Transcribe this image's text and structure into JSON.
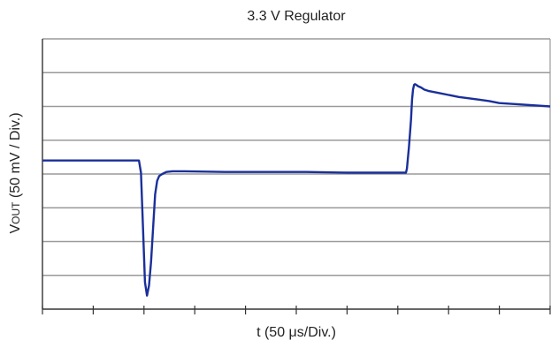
{
  "chart_data": {
    "type": "line",
    "title": "3.3 V Regulator",
    "xlabel": "t (50 μs/Div.)",
    "ylabel": {
      "prefix": "V",
      "subscript": "OUT",
      "suffix": " (50 mV / Div.)"
    },
    "xlim": [
      0,
      500
    ],
    "ylim": [
      -200,
      200
    ],
    "x_divisions": 10,
    "y_divisions": 8,
    "grid": "horizontal",
    "series": [
      {
        "x": [
          0,
          30,
          60,
          95,
          97,
          99,
          101,
          103,
          105,
          107,
          109,
          111,
          113,
          115,
          118,
          122,
          128,
          140,
          180,
          220,
          260,
          300,
          340,
          358,
          359,
          361,
          363,
          364,
          365,
          366,
          367,
          368,
          370,
          373,
          376,
          380,
          390,
          400,
          410,
          420,
          430,
          440,
          450,
          460,
          470,
          480,
          490,
          500
        ],
        "y": [
          20,
          20,
          20,
          20,
          2,
          -80,
          -160,
          -180,
          -165,
          -130,
          -80,
          -30,
          -10,
          -3,
          0,
          3,
          4,
          4,
          3,
          3,
          3,
          2,
          2,
          2,
          8,
          40,
          80,
          110,
          125,
          132,
          133,
          132,
          130,
          128,
          125,
          123,
          120,
          117,
          114,
          112,
          110,
          108,
          105,
          104,
          103,
          102,
          101,
          100
        ]
      }
    ],
    "line_color": "#1a2f9a"
  }
}
